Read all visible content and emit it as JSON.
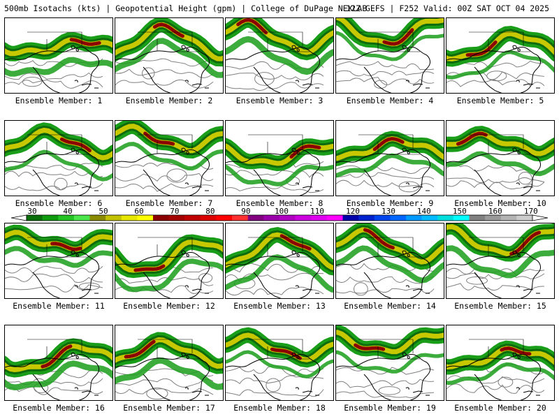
{
  "header": {
    "left": "500mb Isotachs (kts) | Geopotential Height (gpm) | College of DuPage NEXLAB",
    "right": "12Z GEFS | F252 Valid: 00Z SAT OCT 04 2025"
  },
  "colorbar": {
    "labels": [
      "30",
      "40",
      "50",
      "60",
      "70",
      "80",
      "90",
      "100",
      "110",
      "120",
      "130",
      "140",
      "150",
      "160",
      "170"
    ],
    "colors": [
      "#0a6f0a",
      "#0f9a0f",
      "#22c322",
      "#4ce64c",
      "#8a8a00",
      "#c2c200",
      "#e6e600",
      "#ffff00",
      "#8b0000",
      "#a50000",
      "#c00000",
      "#dc0000",
      "#ff0000",
      "#ff3030",
      "#800080",
      "#9900aa",
      "#b000c0",
      "#cc00dd",
      "#e000f0",
      "#ff00ff",
      "#0000aa",
      "#0022cc",
      "#0044ee",
      "#0066ff",
      "#0099ff",
      "#00bbff",
      "#00dddd",
      "#00ffff",
      "#808080",
      "#999999",
      "#b3b3b3",
      "#cccccc"
    ]
  },
  "colors": {
    "jet_outer": "#1a9e1a",
    "jet_mid": "#0d6b0d",
    "jet_yellow": "#c8c800",
    "jet_core": "#8b0000",
    "contour": "#808080",
    "coast": "#000000"
  },
  "members": [
    {
      "label": "Ensemble Member: 1"
    },
    {
      "label": "Ensemble Member: 2"
    },
    {
      "label": "Ensemble Member: 3"
    },
    {
      "label": "Ensemble Member: 4"
    },
    {
      "label": "Ensemble Member: 5"
    },
    {
      "label": "Ensemble Member: 6"
    },
    {
      "label": "Ensemble Member: 7"
    },
    {
      "label": "Ensemble Member: 8"
    },
    {
      "label": "Ensemble Member: 9"
    },
    {
      "label": "Ensemble Member: 10"
    },
    {
      "label": "Ensemble Member: 11"
    },
    {
      "label": "Ensemble Member: 12"
    },
    {
      "label": "Ensemble Member: 13"
    },
    {
      "label": "Ensemble Member: 14"
    },
    {
      "label": "Ensemble Member: 15"
    },
    {
      "label": "Ensemble Member: 16"
    },
    {
      "label": "Ensemble Member: 17"
    },
    {
      "label": "Ensemble Member: 18"
    },
    {
      "label": "Ensemble Member: 19"
    },
    {
      "label": "Ensemble Member: 20"
    }
  ]
}
